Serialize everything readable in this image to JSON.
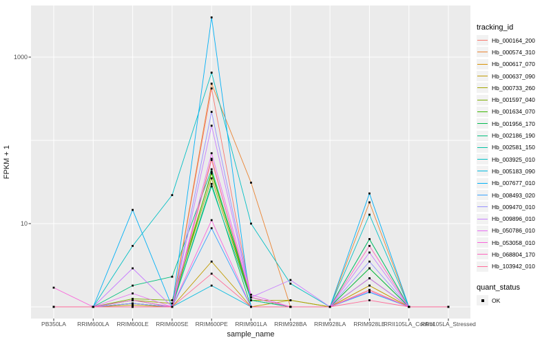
{
  "legend": {
    "tracking_title": "tracking_id",
    "quant_title": "quant_status",
    "ok_label": "OK"
  },
  "chart_data": {
    "type": "line",
    "title": "",
    "xlabel": "sample_name",
    "ylabel": "FPKM + 1",
    "y_scale": "log10",
    "y_ticks": [
      10,
      1000
    ],
    "ylim": [
      0.72,
      4200
    ],
    "grid": true,
    "legend_position": "right",
    "point_shape": "black-square",
    "style": {
      "panel_bg": "#EBEBEB",
      "gridline": "#FFFFFF",
      "point_color": "#000000",
      "tick_label_color": "#4D4D4D",
      "axis_title_color": "#1A1A1A",
      "legend_key_bg": "#F2F2F2"
    },
    "categories": [
      "PB350LA",
      "RRIM600LA",
      "RRIM600LE",
      "RRIM600SE",
      "RRIM600PE",
      "RRIM901LA",
      "RRIM928BA",
      "RRIM928LA",
      "RRIM928LE",
      "RRII105LA_Control",
      "RRII105LA_Stressed"
    ],
    "series": [
      {
        "name": "Hb_000164_200",
        "color": "#F8766D",
        "values": [
          1,
          1,
          1,
          1,
          420,
          1.3,
          1,
          1,
          1.6,
          1,
          1
        ]
      },
      {
        "name": "Hb_000574_310",
        "color": "#EA8331",
        "values": [
          1,
          1,
          1.1,
          1,
          480,
          31,
          1,
          1,
          18,
          1,
          1
        ]
      },
      {
        "name": "Hb_000617_070",
        "color": "#D89000",
        "values": [
          1,
          1,
          1,
          1,
          60,
          1.2,
          1,
          1,
          1.8,
          1,
          1
        ]
      },
      {
        "name": "Hb_000637_090",
        "color": "#C09B00",
        "values": [
          1,
          1,
          1.05,
          1,
          3.5,
          1,
          1.2,
          1,
          1.8,
          1,
          1
        ]
      },
      {
        "name": "Hb_000733_260",
        "color": "#A3A500",
        "values": [
          1,
          1,
          1.2,
          1.1,
          35,
          1.2,
          1.2,
          1,
          2.2,
          1,
          1
        ]
      },
      {
        "name": "Hb_001597_040",
        "color": "#7CAE00",
        "values": [
          1,
          1,
          1.25,
          1.2,
          40,
          1.3,
          1,
          1,
          2.9,
          1,
          1
        ]
      },
      {
        "name": "Hb_001634_070",
        "color": "#39B600",
        "values": [
          1,
          1,
          1.1,
          1,
          42,
          1.2,
          1,
          1,
          6.5,
          1,
          1
        ]
      },
      {
        "name": "Hb_001956_170",
        "color": "#00BB4E",
        "values": [
          1,
          1,
          1,
          1,
          30,
          1,
          1,
          1,
          2.9,
          1,
          1
        ]
      },
      {
        "name": "Hb_002186_190",
        "color": "#00BF7D",
        "values": [
          1,
          1,
          1.8,
          2.3,
          45,
          1.3,
          1,
          1,
          6.5,
          1,
          1
        ]
      },
      {
        "name": "Hb_002581_150",
        "color": "#00C1A3",
        "values": [
          1,
          1,
          1.1,
          1,
          28,
          1.2,
          1,
          1,
          2.2,
          1,
          1
        ]
      },
      {
        "name": "Hb_003925_010",
        "color": "#00BFC4",
        "values": [
          1,
          1,
          5.4,
          22,
          650,
          10,
          1.9,
          1,
          12.8,
          1,
          1
        ]
      },
      {
        "name": "Hb_005183_090",
        "color": "#00BAE0",
        "values": [
          1,
          1,
          1.2,
          1,
          1.8,
          1,
          1,
          1,
          1.5,
          1,
          1
        ]
      },
      {
        "name": "Hb_007677_010",
        "color": "#00B0F6",
        "values": [
          1,
          1,
          14.6,
          1,
          3000,
          1,
          1,
          1,
          23,
          1,
          1
        ]
      },
      {
        "name": "Hb_008493_020",
        "color": "#35A2FF",
        "values": [
          1,
          1,
          1,
          1,
          8.8,
          1,
          1,
          1,
          1.5,
          1,
          1
        ]
      },
      {
        "name": "Hb_009470_010",
        "color": "#9590FF",
        "values": [
          1,
          1,
          1.1,
          1,
          220,
          1.3,
          1,
          1,
          3.5,
          1,
          1
        ]
      },
      {
        "name": "Hb_009896_010",
        "color": "#C77CFF",
        "values": [
          1,
          1,
          2.9,
          1,
          150,
          1.3,
          2.1,
          1,
          4.5,
          1,
          1
        ]
      },
      {
        "name": "Hb_050786_010",
        "color": "#E76BF3",
        "values": [
          1,
          1,
          1.45,
          1,
          70,
          1.4,
          1,
          1,
          2.2,
          1,
          1
        ]
      },
      {
        "name": "Hb_053058_010",
        "color": "#FA62DB",
        "values": [
          1.7,
          1,
          1,
          1,
          11,
          1,
          1,
          1,
          1.55,
          1,
          1
        ]
      },
      {
        "name": "Hb_068804_170",
        "color": "#FF62BC",
        "values": [
          1,
          1,
          1.2,
          1,
          58,
          1.3,
          1,
          1,
          5.4,
          1,
          1
        ]
      },
      {
        "name": "Hb_103942_010",
        "color": "#FF6A98",
        "values": [
          1,
          1,
          1,
          1,
          2.5,
          1,
          1,
          1,
          1.2,
          1,
          1
        ]
      }
    ]
  }
}
